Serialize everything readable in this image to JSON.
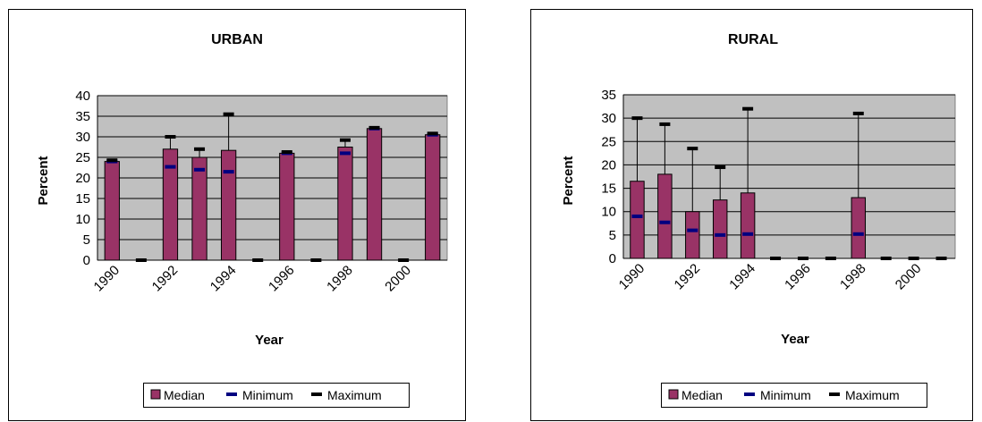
{
  "colors": {
    "plot_bg": "#c0c0c0",
    "bar": "#993366",
    "minimum": "#000080",
    "maximum": "#000000",
    "grid": "#000000"
  },
  "chart_data": [
    {
      "type": "bar",
      "title": "URBAN",
      "xlabel": "Year",
      "ylabel": "Percent",
      "ylim": [
        0,
        40
      ],
      "yticks": [
        "0",
        "5",
        "10",
        "15",
        "20",
        "25",
        "30",
        "35",
        "40"
      ],
      "categories": [
        "1990",
        "1991",
        "1992",
        "1993",
        "1994",
        "1995",
        "1996",
        "1997",
        "1998",
        "1999",
        "2000",
        "2001"
      ],
      "xtick_labels": [
        "1990",
        "1992",
        "1994",
        "1996",
        "1998",
        "2000"
      ],
      "grid": true,
      "legend_placement": "bottom",
      "legend": [
        "Median",
        "Minimum",
        "Maximum"
      ],
      "series": [
        {
          "name": "Median",
          "values": [
            24,
            0,
            27,
            25,
            26.7,
            0,
            26,
            0,
            27.5,
            32,
            0,
            30.5
          ]
        },
        {
          "name": "Minimum",
          "values": [
            24,
            0,
            22.7,
            22,
            21.5,
            0,
            26,
            0,
            26,
            32,
            0,
            30.5
          ]
        },
        {
          "name": "Maximum",
          "values": [
            24.3,
            0,
            30,
            27,
            35.5,
            0,
            26.3,
            0,
            29.2,
            32.2,
            0,
            30.8
          ]
        }
      ]
    },
    {
      "type": "bar",
      "title": "RURAL",
      "xlabel": "Year",
      "ylabel": "Percent",
      "ylim": [
        0,
        35
      ],
      "yticks": [
        "0",
        "5",
        "10",
        "15",
        "20",
        "25",
        "30",
        "35"
      ],
      "categories": [
        "1990",
        "1991",
        "1992",
        "1993",
        "1994",
        "1995",
        "1996",
        "1997",
        "1998",
        "1999",
        "2000",
        "2001"
      ],
      "xtick_labels": [
        "1990",
        "1992",
        "1994",
        "1996",
        "1998",
        "2000"
      ],
      "grid": true,
      "legend_placement": "bottom",
      "legend": [
        "Median",
        "Minimum",
        "Maximum"
      ],
      "series": [
        {
          "name": "Median",
          "values": [
            16.5,
            18,
            10,
            12.5,
            14,
            0,
            0,
            0,
            13,
            0,
            0,
            0
          ]
        },
        {
          "name": "Minimum",
          "values": [
            9,
            7.7,
            6,
            5,
            5.2,
            0,
            0,
            0,
            5.2,
            0,
            0,
            0
          ]
        },
        {
          "name": "Maximum",
          "values": [
            30,
            28.7,
            23.5,
            19.5,
            32,
            0,
            0,
            0,
            31,
            0,
            0,
            0
          ]
        }
      ]
    }
  ]
}
